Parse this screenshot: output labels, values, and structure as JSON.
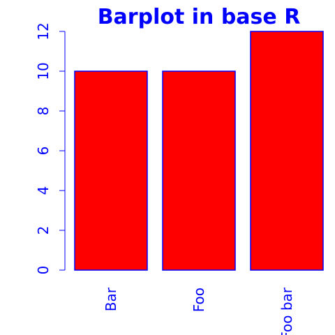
{
  "chart_data": {
    "type": "bar",
    "title": "Barplot in base R",
    "xlabel": "",
    "ylabel": "",
    "categories": [
      "Bar",
      "Foo",
      "Foo bar"
    ],
    "values": [
      10,
      10,
      12
    ],
    "ylim": [
      0,
      12
    ],
    "yticks": [
      0,
      2,
      4,
      6,
      8,
      10,
      12
    ],
    "grid": false,
    "colors": {
      "bar_fill": "#ff0000",
      "bar_border": "#0000ff",
      "axis": "#0000ff",
      "text": "#0000ff"
    }
  }
}
